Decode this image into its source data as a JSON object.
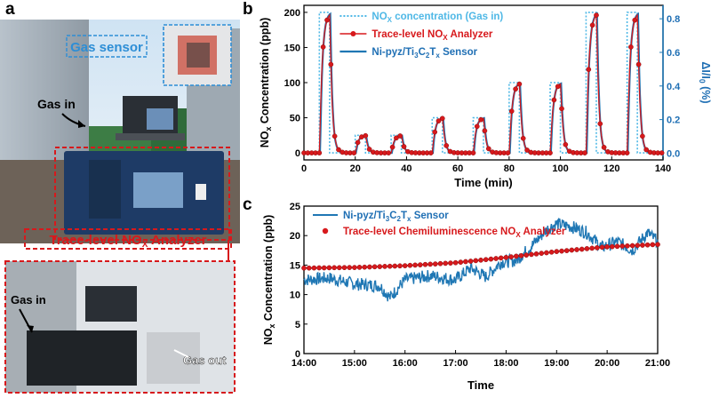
{
  "panels": {
    "a": "a",
    "b": "b",
    "c": "c"
  },
  "photo": {
    "gas_sensor_label": "Gas sensor",
    "gas_in_top": "Gas in",
    "analyzer_label_main": "Trace-level NO",
    "analyzer_label_sub": "X",
    "analyzer_label_end": " Analyzer",
    "gas_in_bottom": "Gas in",
    "gas_out": "Gas out",
    "colors": {
      "red": "#d7191c",
      "blue": "#1f6fb4",
      "sky": "#8fb6d9"
    }
  },
  "chart_data": [
    {
      "type": "line",
      "panel": "b",
      "xlabel": "Time (min)",
      "ylabel_left": "NOx Concentration (ppb)",
      "ylabel_right": "ΔI/I0 (%)",
      "xlim": [
        0,
        140
      ],
      "ylim_left": [
        -10,
        210
      ],
      "ylim_right": [
        -0.04,
        0.88
      ],
      "xticks": [
        0,
        20,
        40,
        60,
        80,
        100,
        120,
        140
      ],
      "yticks_left": [
        0,
        50,
        100,
        150,
        200
      ],
      "yticks_right": [
        0.0,
        0.2,
        0.4,
        0.6,
        0.8
      ],
      "legend_position": "top-center",
      "series": [
        {
          "name": "NOx concentration (Gas in)",
          "style": "dotted",
          "color": "#4fb8e6",
          "pulses": [
            {
              "start": 6,
              "end": 10,
              "level": 200
            },
            {
              "start": 20,
              "end": 24,
              "level": 25
            },
            {
              "start": 34,
              "end": 38,
              "level": 25
            },
            {
              "start": 50,
              "end": 54,
              "level": 50
            },
            {
              "start": 66,
              "end": 70,
              "level": 50
            },
            {
              "start": 80,
              "end": 84,
              "level": 100
            },
            {
              "start": 96,
              "end": 100,
              "level": 100
            },
            {
              "start": 110,
              "end": 114,
              "level": 200
            },
            {
              "start": 126,
              "end": 130,
              "level": 200
            }
          ]
        },
        {
          "name": "Trace-level NOx Analyzer",
          "style": "line+marker",
          "color": "#d7191c"
        },
        {
          "name": "Ni-pyz/Ti3C2Tx Sensor",
          "style": "line",
          "color": "#1f77b4"
        }
      ],
      "legend": [
        {
          "main": "NO",
          "sub": "X",
          "rest": " concentration (Gas in)"
        },
        {
          "main": "Trace-level NO",
          "sub": "X",
          "rest": " Analyzer"
        },
        {
          "main": "Ni-pyz/Ti",
          "sub": "3",
          "rest": "C",
          "sub2": "2",
          "rest2": "T",
          "sub3": "x",
          "rest3": " Sensor"
        }
      ]
    },
    {
      "type": "line",
      "panel": "c",
      "xlabel": "Time",
      "ylabel": "NOx Concentration (ppb)",
      "xlim": [
        14.0,
        21.0
      ],
      "ylim": [
        0,
        25
      ],
      "xticks": [
        "14:00",
        "15:00",
        "16:00",
        "17:00",
        "18:00",
        "19:00",
        "20:00",
        "21:00"
      ],
      "yticks": [
        0,
        5,
        10,
        15,
        20,
        25
      ],
      "legend_position": "top-left",
      "series": [
        {
          "name": "Ni-pyz/Ti3C2Tx Sensor",
          "color": "#1f77b4",
          "keyframes": [
            [
              14.0,
              12.5
            ],
            [
              14.5,
              12.8
            ],
            [
              15.0,
              11.8
            ],
            [
              15.5,
              11.5
            ],
            [
              15.7,
              9.5
            ],
            [
              16.0,
              12.5
            ],
            [
              16.5,
              13.2
            ],
            [
              17.0,
              12.5
            ],
            [
              17.3,
              14.5
            ],
            [
              17.6,
              13.0
            ],
            [
              17.9,
              15.5
            ],
            [
              18.2,
              15.8
            ],
            [
              18.5,
              18.2
            ],
            [
              18.8,
              21.0
            ],
            [
              19.0,
              22.0
            ],
            [
              19.3,
              21.5
            ],
            [
              19.6,
              20.5
            ],
            [
              19.9,
              18.0
            ],
            [
              20.2,
              19.0
            ],
            [
              20.5,
              17.5
            ],
            [
              20.8,
              20.5
            ],
            [
              21.0,
              19.0
            ]
          ]
        },
        {
          "name": "Trace-level Chemiluminescence NOx Analyzer",
          "color": "#d7191c",
          "marker": "circle",
          "keyframes": [
            [
              14.0,
              14.5
            ],
            [
              15.0,
              14.6
            ],
            [
              16.0,
              14.9
            ],
            [
              17.0,
              15.4
            ],
            [
              18.0,
              16.3
            ],
            [
              19.0,
              17.3
            ],
            [
              20.0,
              18.1
            ],
            [
              21.0,
              18.5
            ]
          ]
        }
      ],
      "legend": [
        {
          "main": "Ni-pyz/Ti",
          "sub": "3",
          "rest": "C",
          "sub2": "2",
          "rest2": "T",
          "sub3": "x",
          "rest3": " Sensor"
        },
        {
          "main": "Trace-level Chemiluminescence NO",
          "sub": "X",
          "rest": " Analyzer"
        }
      ]
    }
  ]
}
